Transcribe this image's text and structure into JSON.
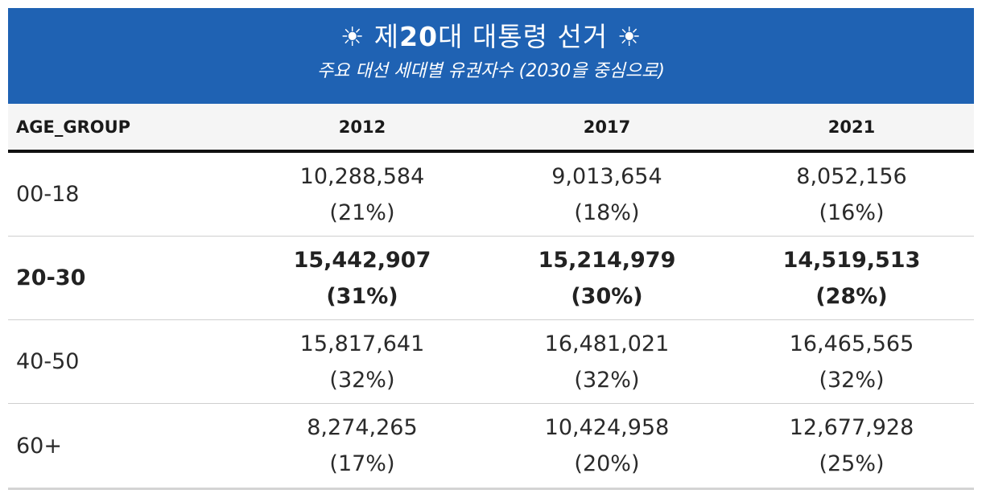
{
  "header": {
    "title_prefix": "☀ 제",
    "title_number": "20",
    "title_suffix": "대 대통령 선거 ☀",
    "subtitle": "주요 대선 세대별 유권자수 (2030을 중심으로)"
  },
  "table": {
    "columns": [
      "AGE_GROUP",
      "2012",
      "2017",
      "2021"
    ],
    "rows": [
      {
        "age": "00-18",
        "cells": [
          {
            "value": "10,288,584",
            "pct": "(21%)"
          },
          {
            "value": "9,013,654",
            "pct": "(18%)"
          },
          {
            "value": "8,052,156",
            "pct": "(16%)"
          }
        ]
      },
      {
        "age": "20-30",
        "cells": [
          {
            "value": "15,442,907",
            "pct": "(31%)"
          },
          {
            "value": "15,214,979",
            "pct": "(30%)"
          },
          {
            "value": "14,519,513",
            "pct": "(28%)"
          }
        ]
      },
      {
        "age": "40-50",
        "cells": [
          {
            "value": "15,817,641",
            "pct": "(32%)"
          },
          {
            "value": "16,481,021",
            "pct": "(32%)"
          },
          {
            "value": "16,465,565",
            "pct": "(32%)"
          }
        ]
      },
      {
        "age": "60+",
        "cells": [
          {
            "value": "8,274,265",
            "pct": "(17%)"
          },
          {
            "value": "10,424,958",
            "pct": "(20%)"
          },
          {
            "value": "12,677,928",
            "pct": "(25%)"
          }
        ]
      }
    ],
    "highlighted_row": "20-30"
  },
  "colors": {
    "banner_bg": "#1f62b3",
    "header_bg": "#f5f5f5",
    "header_rule": "#111111"
  }
}
